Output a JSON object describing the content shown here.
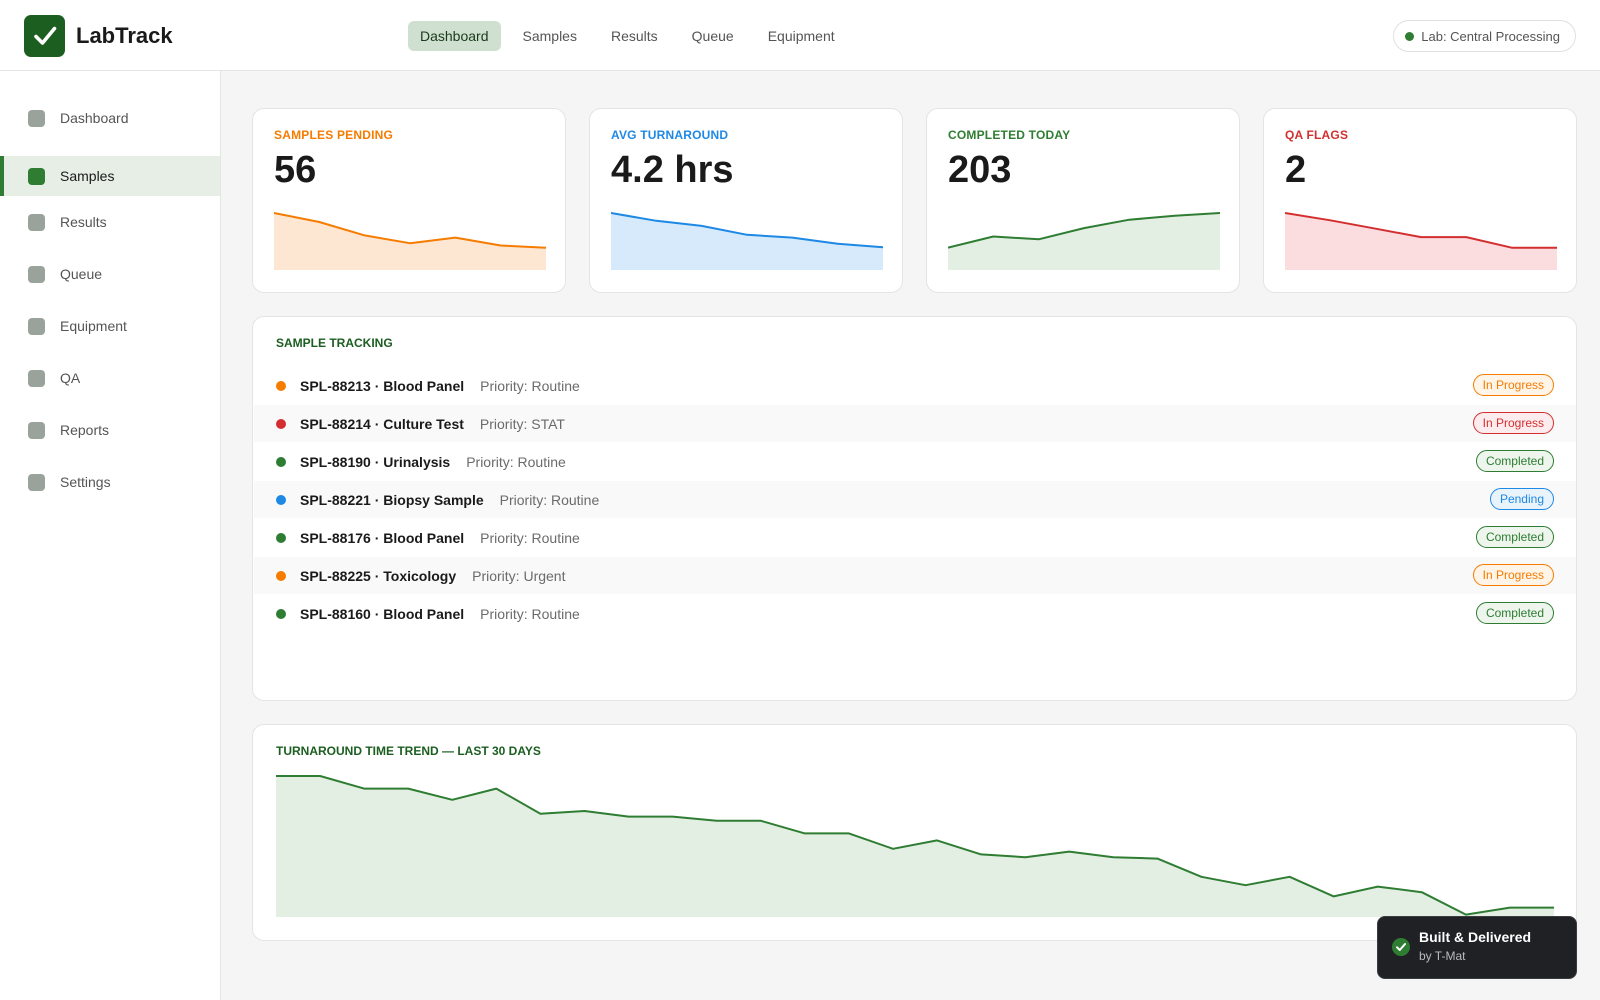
{
  "app": {
    "name": "LabTrack"
  },
  "topnav": {
    "items": [
      {
        "label": "Dashboard",
        "active": true
      },
      {
        "label": "Samples",
        "active": false
      },
      {
        "label": "Results",
        "active": false
      },
      {
        "label": "Queue",
        "active": false
      },
      {
        "label": "Equipment",
        "active": false
      }
    ]
  },
  "lab_selector": {
    "label": "Lab: Central Processing",
    "status_color": "#2e7d32"
  },
  "sidebar": {
    "items": [
      {
        "label": "Dashboard",
        "icon": "square-icon",
        "active": false
      },
      {
        "label": "Samples",
        "icon": "square-icon",
        "active": true
      },
      {
        "label": "Results",
        "icon": "square-icon",
        "active": false
      },
      {
        "label": "Queue",
        "icon": "square-icon",
        "active": false
      },
      {
        "label": "Equipment",
        "icon": "square-icon",
        "active": false
      },
      {
        "label": "QA",
        "icon": "square-icon",
        "active": false
      },
      {
        "label": "Reports",
        "icon": "square-icon",
        "active": false
      },
      {
        "label": "Settings",
        "icon": "square-icon",
        "active": false
      }
    ]
  },
  "kpis": [
    {
      "label": "SAMPLES PENDING",
      "value": "56",
      "color": "#f57c00",
      "fill": "#fde6d2",
      "trend": [
        10,
        8.4,
        6,
        4.6,
        5.6,
        4.2,
        3.8
      ]
    },
    {
      "label": "AVG TURNAROUND",
      "value": "4.2 hrs",
      "color": "#1e88e5",
      "fill": "#d6eafb",
      "trend": [
        10,
        8.6,
        7.7,
        6.1,
        5.6,
        4.5,
        3.9
      ]
    },
    {
      "label": "COMPLETED TODAY",
      "value": "203",
      "color": "#2e7d32",
      "fill": "#e3efe3",
      "trend": [
        3.8,
        5.8,
        5.3,
        7.3,
        8.8,
        9.5,
        10
      ]
    },
    {
      "label": "QA FLAGS",
      "value": "2",
      "color": "#d32f2f",
      "fill": "#fbdde0",
      "trend": [
        10,
        8.7,
        7.2,
        5.7,
        5.7,
        3.8,
        3.8
      ]
    }
  ],
  "sample_tracking": {
    "title": "SAMPLE TRACKING",
    "rows": [
      {
        "id_name": "SPL-88213 · Blood Panel",
        "priority": "Priority: Routine",
        "status": "In Progress",
        "dot_color": "#f57c00",
        "status_color": "#f57c00",
        "status_bg": "#fff4e8"
      },
      {
        "id_name": "SPL-88214 · Culture Test",
        "priority": "Priority: STAT",
        "status": "In Progress",
        "dot_color": "#d32f2f",
        "status_color": "#d32f2f",
        "status_bg": "#fdecee"
      },
      {
        "id_name": "SPL-88190 · Urinalysis",
        "priority": "Priority: Routine",
        "status": "Completed",
        "dot_color": "#2e7d32",
        "status_color": "#2e7d32",
        "status_bg": "#edf5ed"
      },
      {
        "id_name": "SPL-88221 · Biopsy Sample",
        "priority": "Priority: Routine",
        "status": "Pending",
        "dot_color": "#1e88e5",
        "status_color": "#1e88e5",
        "status_bg": "#e9f3fc"
      },
      {
        "id_name": "SPL-88176 · Blood Panel",
        "priority": "Priority: Routine",
        "status": "Completed",
        "dot_color": "#2e7d32",
        "status_color": "#2e7d32",
        "status_bg": "#edf5ed"
      },
      {
        "id_name": "SPL-88225 · Toxicology",
        "priority": "Priority: Urgent",
        "status": "In Progress",
        "dot_color": "#f57c00",
        "status_color": "#f57c00",
        "status_bg": "#fff4e8"
      },
      {
        "id_name": "SPL-88160 · Blood Panel",
        "priority": "Priority: Routine",
        "status": "Completed",
        "dot_color": "#2e7d32",
        "status_color": "#2e7d32",
        "status_bg": "#edf5ed"
      }
    ]
  },
  "turnaround_trend": {
    "title": "TURNAROUND TIME TREND — LAST 30 DAYS",
    "color": "#2e7d32",
    "fill": "#e3efe3",
    "values": [
      10,
      10,
      9.1,
      9.1,
      8.3,
      9.1,
      7.3,
      7.5,
      7.1,
      7.1,
      6.8,
      6.8,
      5.9,
      5.9,
      4.8,
      5.4,
      4.4,
      4.2,
      4.6,
      4.2,
      4.1,
      2.8,
      2.2,
      2.8,
      1.4,
      2.1,
      1.7,
      0.1,
      0.6,
      0.6
    ]
  },
  "toast": {
    "title": "Built & Delivered",
    "subtitle": "by T-Mat",
    "icon": "check-icon"
  }
}
